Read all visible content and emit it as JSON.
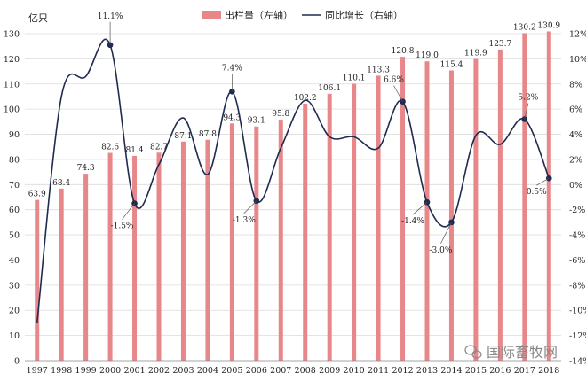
{
  "chart_data": {
    "type": "bar",
    "left_axis_unit": "亿只",
    "legend": {
      "bar_label": "出栏量（左轴）",
      "line_label": "同比增长（右轴）",
      "placement": "top-center"
    },
    "categories": [
      "1997",
      "1998",
      "1999",
      "2000",
      "2001",
      "2002",
      "2003",
      "2004",
      "2005",
      "2006",
      "2007",
      "2008",
      "2009",
      "2010",
      "2011",
      "2012",
      "2013",
      "2014",
      "2015",
      "2016",
      "2017",
      "2018"
    ],
    "bar_series": {
      "name": "出栏量（左轴）",
      "axis": "left",
      "values": [
        63.9,
        68.4,
        74.3,
        82.6,
        81.4,
        82.7,
        87.1,
        87.8,
        94.3,
        93.1,
        95.8,
        102.2,
        106.1,
        110.1,
        113.3,
        120.8,
        119.0,
        115.4,
        119.9,
        123.7,
        130.2,
        130.9
      ],
      "labels": [
        "63.9",
        "68.4",
        "74.3",
        "82.6",
        "81.4",
        "82.7",
        "87.1",
        "87.8",
        "94.3",
        "93.1",
        "95.8",
        "102.2",
        "106.1",
        "110.1",
        "113.3",
        "120.8",
        "119.0",
        "115.4",
        "119.9",
        "123.7",
        "130.2",
        "130.9"
      ],
      "color": "#e8878a"
    },
    "line_series": {
      "name": "同比增长（右轴）",
      "axis": "right",
      "values": [
        -11.0,
        7.0,
        8.6,
        11.1,
        -1.5,
        1.6,
        5.3,
        0.8,
        7.4,
        -1.3,
        2.9,
        6.7,
        3.8,
        3.8,
        2.9,
        6.6,
        -1.4,
        -3.0,
        3.9,
        3.2,
        5.2,
        0.5
      ],
      "color": "#1f2a50",
      "markers": [
        3,
        4,
        8,
        9,
        15,
        16,
        17,
        20,
        21
      ],
      "annotations": [
        {
          "index": 3,
          "text": "11.1%"
        },
        {
          "index": 4,
          "text": "-1.5%"
        },
        {
          "index": 8,
          "text": "7.4%"
        },
        {
          "index": 9,
          "text": "-1.3%"
        },
        {
          "index": 15,
          "text": "6.6%"
        },
        {
          "index": 16,
          "text": "-1.4%"
        },
        {
          "index": 17,
          "text": "-3.0%"
        },
        {
          "index": 20,
          "text": "5.2%"
        },
        {
          "index": 21,
          "text": "0.5%"
        }
      ]
    },
    "left_axis": {
      "min": 0,
      "max": 130,
      "step": 10
    },
    "right_axis": {
      "min": -14,
      "max": 12,
      "step": 2,
      "tick_labels": [
        "-14%",
        "-12%",
        "-10%",
        "-8%",
        "-6%",
        "-4%",
        "-2%",
        "0%",
        "2%",
        "4%",
        "6%",
        "8%",
        "10%",
        "12%"
      ]
    },
    "grid": true
  },
  "watermark": {
    "icon": "wechat-icon",
    "text": "国际畜牧网"
  }
}
